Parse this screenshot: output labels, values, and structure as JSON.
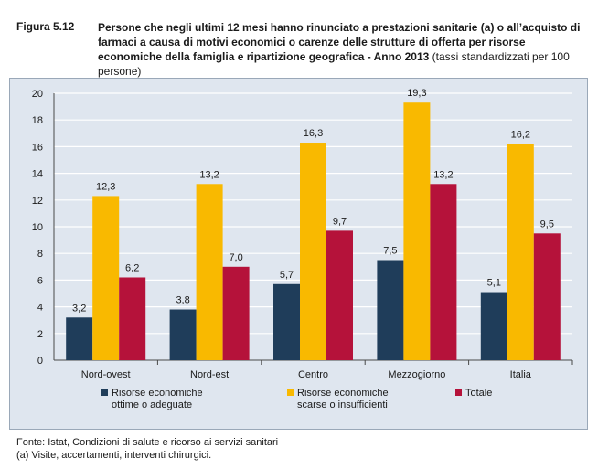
{
  "figure": {
    "label": "Figura 5.12",
    "title": "Persone che negli ultimi 12 mesi hanno rinunciato a prestazioni sanitarie (a) o all’acquisto di farmaci a causa di motivi economici o carenze delle strutture di offerta per risorse economiche della famiglia e ripartizione geografica - Anno 2013",
    "unit_note": "(tassi standardizzati per 100 persone)"
  },
  "chart_data": {
    "type": "bar",
    "categories": [
      "Nord-ovest",
      "Nord-est",
      "Centro",
      "Mezzogiorno",
      "Italia"
    ],
    "series": [
      {
        "name": "Risorse economiche ottime o adeguate",
        "color": "#1f3d5a",
        "values": [
          3.2,
          3.8,
          5.7,
          7.5,
          5.1
        ],
        "labels": [
          "3,2",
          "3,8",
          "5,7",
          "7,5",
          "5,1"
        ]
      },
      {
        "name": "Risorse economiche scarse o insufficienti",
        "color": "#f9b900",
        "values": [
          12.3,
          13.2,
          16.3,
          19.3,
          16.2
        ],
        "labels": [
          "12,3",
          "13,2",
          "16,3",
          "19,3",
          "16,2"
        ]
      },
      {
        "name": "Totale",
        "color": "#b5123a",
        "values": [
          6.2,
          7.0,
          9.7,
          13.2,
          9.5
        ],
        "labels": [
          "6,2",
          "7,0",
          "9,7",
          "13,2",
          "9,5"
        ]
      }
    ],
    "legend": [
      {
        "lines": [
          "Risorse economiche",
          "ottime o adeguate"
        ],
        "color": "#1f3d5a"
      },
      {
        "lines": [
          "Risorse economiche",
          "scarse o insufficienti"
        ],
        "color": "#f9b900"
      },
      {
        "lines": [
          "Totale"
        ],
        "color": "#b5123a"
      }
    ],
    "yticks": [
      "0",
      "2",
      "4",
      "6",
      "8",
      "10",
      "12",
      "14",
      "16",
      "18",
      "20"
    ],
    "ylim": [
      0,
      20
    ],
    "grid": true,
    "legend_position": "bottom"
  },
  "footer": {
    "source": "Fonte: Istat, Condizioni di salute e ricorso ai servizi sanitari",
    "note": "(a) Visite, accertamenti, interventi chirurgici."
  }
}
